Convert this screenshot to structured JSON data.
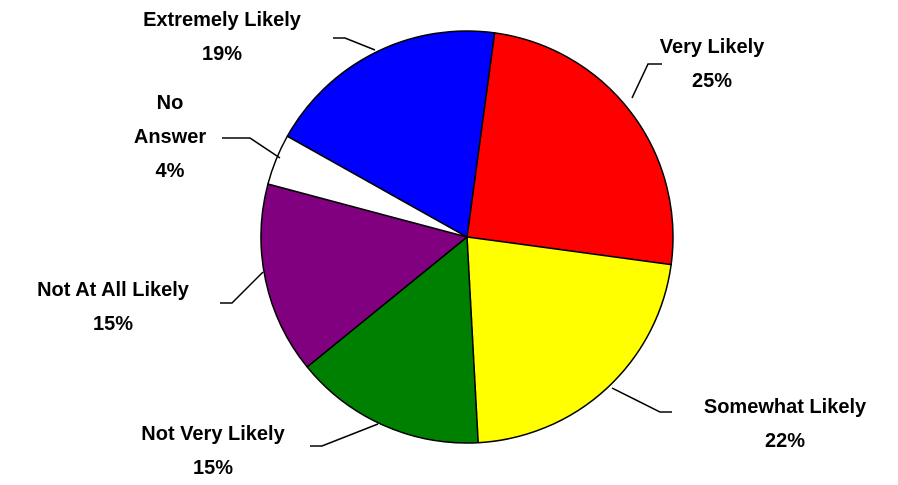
{
  "chart_data": {
    "type": "pie",
    "categories": [
      "Very Likely",
      "Somewhat Likely",
      "Not Very Likely",
      "Not At All Likely",
      "No Answer",
      "Extremely Likely"
    ],
    "values": [
      25,
      22,
      15,
      15,
      4,
      19
    ],
    "value_labels": [
      "25%",
      "22%",
      "15%",
      "15%",
      "4%",
      "19%"
    ],
    "colors": [
      "#ff0000",
      "#ffff00",
      "#008000",
      "#800080",
      "#ffffff",
      "#0000ff"
    ]
  }
}
